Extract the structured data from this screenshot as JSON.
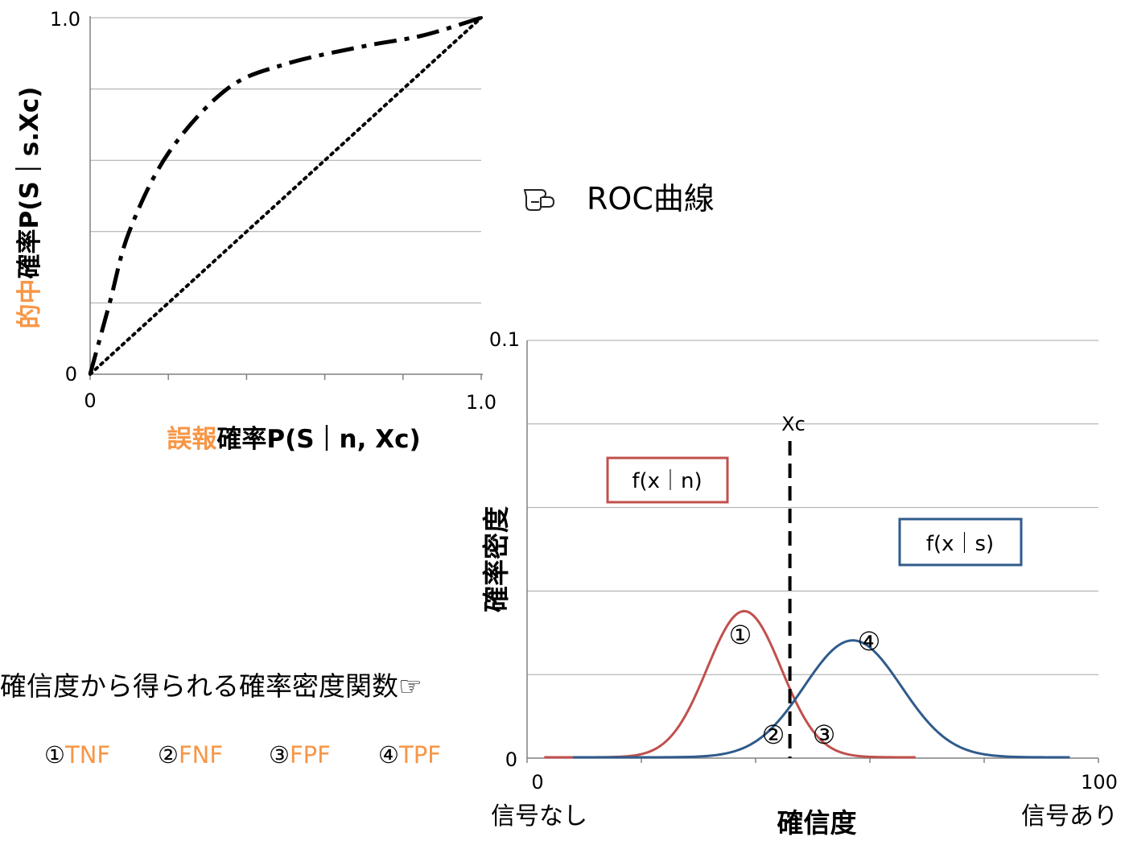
{
  "roc": {
    "tick_y_top": "1.0",
    "tick_y_zero": "0",
    "tick_x_zero": "0",
    "tick_x_right": "1.0",
    "ylabel_orange": "的中",
    "ylabel_black": "確率P(S｜s.Xc)",
    "xlabel_orange": "誤報",
    "xlabel_black": "確率P(S｜n, Xc)"
  },
  "callout": {
    "icon": "pointing-hand-icon",
    "text": "ROC曲線"
  },
  "density": {
    "tick_y_top": "0.1",
    "tick_y_zero": "0",
    "tick_x_zero": "0",
    "tick_x_right": "100",
    "x_left_caption": "信号なし",
    "x_right_caption": "信号あり",
    "xlabel": "確信度",
    "ylabel": "確率密度",
    "criterion_label": "Xc",
    "noise_label": "f(x｜n)",
    "signal_label": "f(x｜s)",
    "region1": "①",
    "region2": "②",
    "region3": "③",
    "region4": "④"
  },
  "legend": {
    "caption": "確信度から得られる確率密度関数☞",
    "items": [
      {
        "num": "①",
        "code": "TNF"
      },
      {
        "num": "②",
        "code": "FNF"
      },
      {
        "num": "③",
        "code": "FPF"
      },
      {
        "num": "④",
        "code": "TPF"
      }
    ]
  },
  "colors": {
    "accent": "#f79646",
    "noise_curve": "#c0504d",
    "signal_curve": "#2f5b8c",
    "grid": "#a6a6a6"
  },
  "chart_data": [
    {
      "type": "line",
      "xlabel": "誤報確率P(S｜n, Xc)",
      "ylabel": "的中確率P(S｜s.Xc)",
      "xlim": [
        0,
        1.0
      ],
      "ylim": [
        0,
        1.0
      ],
      "grid": true,
      "series": [
        {
          "style": "dash-dot",
          "x": [
            0,
            0.05,
            0.1,
            0.2,
            0.35,
            0.5,
            0.7,
            0.85,
            1.0
          ],
          "y": [
            0,
            0.2,
            0.4,
            0.62,
            0.8,
            0.87,
            0.92,
            0.95,
            1.0
          ]
        },
        {
          "style": "dotted",
          "x": [
            0,
            1.0
          ],
          "y": [
            0,
            1.0
          ]
        }
      ]
    },
    {
      "type": "line",
      "xlabel": "確信度",
      "ylabel": "確率密度",
      "xlim": [
        0,
        100
      ],
      "ylim": [
        0,
        0.1
      ],
      "grid": true,
      "criterion_x": 46,
      "series": [
        {
          "name": "f(x｜n)",
          "mean": 38,
          "sd": 6.5,
          "peak": 0.035,
          "x_range": [
            3,
            68
          ]
        },
        {
          "name": "f(x｜s)",
          "mean": 57,
          "sd": 8.5,
          "peak": 0.028,
          "x_range": [
            8,
            95
          ]
        }
      ]
    }
  ]
}
